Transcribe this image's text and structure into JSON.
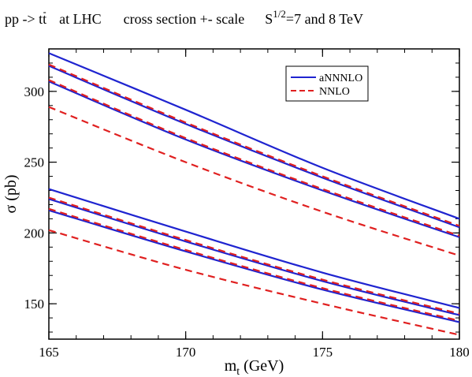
{
  "chart_data": {
    "type": "line",
    "title_parts": {
      "process_prefix": "pp -> t",
      "process_tbar": "t",
      "collider": "at  LHC",
      "description": "cross section +- scale",
      "energy_symbol": "S",
      "energy_exponent": "1/2",
      "energy_value": "=7 and 8 TeV"
    },
    "xlabel": {
      "symbol": "m",
      "subscript": "t",
      "unit": " (GeV)"
    },
    "ylabel": {
      "symbol": "σ",
      "unit": " (pb)"
    },
    "xlim": [
      165,
      180
    ],
    "ylim": [
      125,
      330
    ],
    "xticks": [
      165,
      170,
      175,
      180
    ],
    "yticks": [
      150,
      200,
      250,
      300
    ],
    "x_minor_step": 1,
    "y_minor_step": 10,
    "grid": false,
    "legend_placement": "top-right",
    "legend": [
      {
        "label": "aNNNLO",
        "color": "#1f24d0",
        "dash": "solid"
      },
      {
        "label": "NNLO",
        "color": "#e02020",
        "dash": "dashed"
      }
    ],
    "series": [
      {
        "group": "8 TeV",
        "style": "aNNNLO",
        "role": "upper",
        "points": [
          [
            165,
            327
          ],
          [
            170,
            287
          ],
          [
            175,
            246
          ],
          [
            180,
            210
          ]
        ]
      },
      {
        "group": "8 TeV",
        "style": "aNNNLO",
        "role": "central",
        "points": [
          [
            165,
            318
          ],
          [
            170,
            277
          ],
          [
            175,
            239
          ],
          [
            180,
            204
          ]
        ]
      },
      {
        "group": "8 TeV",
        "style": "aNNNLO",
        "role": "lower",
        "points": [
          [
            165,
            307
          ],
          [
            170,
            266
          ],
          [
            175,
            230
          ],
          [
            180,
            197
          ]
        ]
      },
      {
        "group": "8 TeV",
        "style": "NNLO",
        "role": "upper",
        "points": [
          [
            165,
            319
          ],
          [
            170,
            278
          ],
          [
            175,
            240
          ],
          [
            180,
            205
          ]
        ]
      },
      {
        "group": "8 TeV",
        "style": "NNLO",
        "role": "central",
        "points": [
          [
            165,
            308
          ],
          [
            170,
            267
          ],
          [
            175,
            231
          ],
          [
            180,
            198
          ]
        ]
      },
      {
        "group": "8 TeV",
        "style": "NNLO",
        "role": "lower",
        "points": [
          [
            165,
            289
          ],
          [
            170,
            250
          ],
          [
            175,
            215
          ],
          [
            180,
            184
          ]
        ]
      },
      {
        "group": "7 TeV",
        "style": "aNNNLO",
        "role": "upper",
        "points": [
          [
            165,
            231
          ],
          [
            170,
            201
          ],
          [
            175,
            172
          ],
          [
            180,
            147
          ]
        ]
      },
      {
        "group": "7 TeV",
        "style": "aNNNLO",
        "role": "central",
        "points": [
          [
            165,
            224
          ],
          [
            170,
            194
          ],
          [
            175,
            166
          ],
          [
            180,
            142
          ]
        ]
      },
      {
        "group": "7 TeV",
        "style": "aNNNLO",
        "role": "lower",
        "points": [
          [
            165,
            216
          ],
          [
            170,
            187
          ],
          [
            175,
            160
          ],
          [
            180,
            137
          ]
        ]
      },
      {
        "group": "7 TeV",
        "style": "NNLO",
        "role": "upper",
        "points": [
          [
            165,
            225
          ],
          [
            170,
            195
          ],
          [
            175,
            167
          ],
          [
            180,
            143
          ]
        ]
      },
      {
        "group": "7 TeV",
        "style": "NNLO",
        "role": "central",
        "points": [
          [
            165,
            217
          ],
          [
            170,
            188
          ],
          [
            175,
            161
          ],
          [
            180,
            138
          ]
        ]
      },
      {
        "group": "7 TeV",
        "style": "NNLO",
        "role": "lower",
        "points": [
          [
            165,
            202
          ],
          [
            170,
            174
          ],
          [
            175,
            150
          ],
          [
            180,
            128
          ]
        ]
      }
    ]
  }
}
